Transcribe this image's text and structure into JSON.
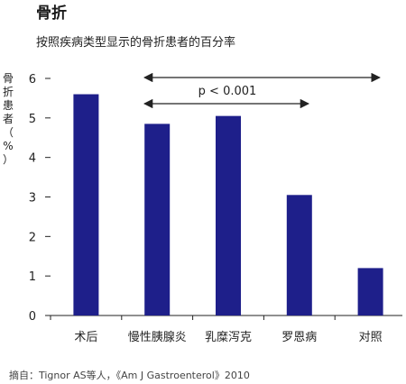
{
  "header": {
    "title": "骨折",
    "subtitle": "按照疾病类型显示的骨折患者的百分率"
  },
  "source": "摘自：Tignor AS等人，《Am J Gastroenterol》2010",
  "colors": {
    "bar": "#1e1f8a",
    "axis": "#222222"
  },
  "chart_data": {
    "type": "bar",
    "title": "骨折",
    "subtitle": "按照疾病类型显示的骨折患者的百分率",
    "ylabel": "骨折患者（%）",
    "xlabel": "",
    "categories": [
      "术后",
      "慢性胰腺炎",
      "乳糜泻克",
      "罗恩病",
      "对照"
    ],
    "values": [
      5.6,
      4.85,
      5.05,
      3.05,
      1.2
    ],
    "ylim": [
      0,
      6
    ],
    "yticks": [
      0,
      1,
      2,
      3,
      4,
      5,
      6
    ],
    "grid": false,
    "annotations": [
      {
        "text": "p < 0.001",
        "from": "慢性胰腺炎",
        "to": "罗恩病"
      },
      {
        "text": "",
        "from": "慢性胰腺炎",
        "to": "对照"
      }
    ]
  }
}
